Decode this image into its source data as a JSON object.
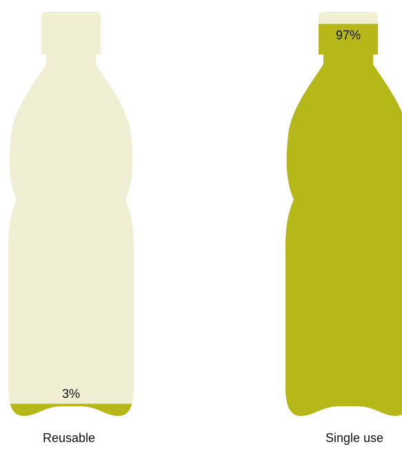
{
  "chart_data": {
    "type": "bar",
    "categories": [
      "Reusable",
      "Single use"
    ],
    "values": [
      3,
      97
    ],
    "value_labels": [
      "3%",
      "97%"
    ],
    "unit": "%",
    "ylim": [
      0,
      100
    ],
    "colors": {
      "fill": "#b5b818",
      "empty": "#f0efd4"
    }
  }
}
